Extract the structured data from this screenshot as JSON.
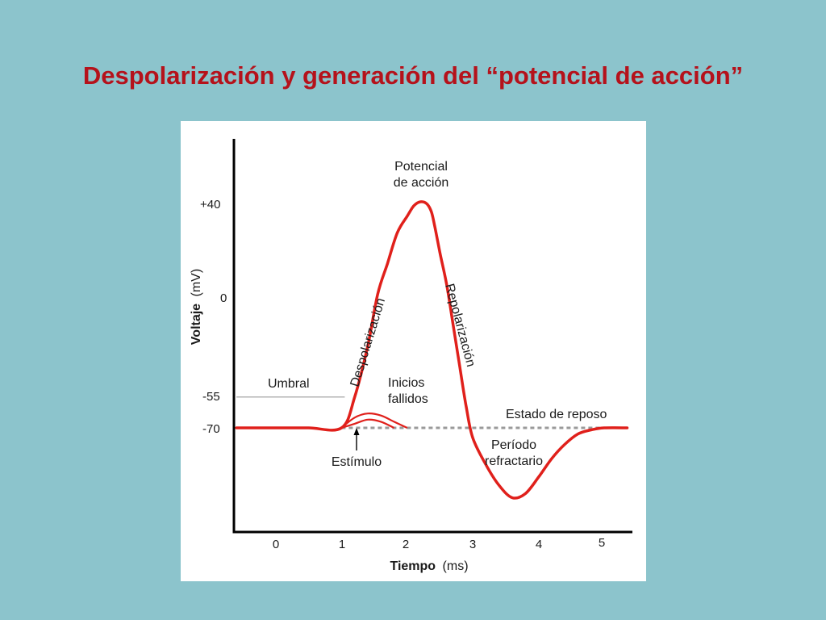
{
  "slide": {
    "title": "Despolarización y generación del “potencial de acción”"
  },
  "chart_data": {
    "type": "line",
    "title": "",
    "xlabel_bold": "Tiempo",
    "xlabel_unit": "(ms)",
    "ylabel_bold": "Voltaje",
    "ylabel_unit": "(mV)",
    "x_ticks": [
      "0",
      "1",
      "2",
      "3",
      "4",
      "5"
    ],
    "x_tick_values": [
      0,
      1,
      2,
      3,
      4,
      5
    ],
    "y_ticks": [
      "+40",
      "0",
      "-55",
      "-70"
    ],
    "y_tick_values": [
      40,
      0,
      -55,
      -70
    ],
    "xlim": [
      -0.6,
      5.35
    ],
    "ylim": [
      -115,
      65
    ],
    "grid": false,
    "colors": {
      "trace": "#e0201b",
      "threshold": "#9a9a9a",
      "resting_dash": "#9a9a9a",
      "axis": "#000000"
    },
    "series": [
      {
        "values_x": [
          -0.6,
          0.0,
          0.5,
          1.0,
          1.2,
          1.4,
          1.55,
          1.7,
          1.85,
          2.0,
          2.1,
          2.2,
          2.3,
          2.37,
          2.42,
          2.5,
          2.6,
          2.7,
          2.8,
          2.9,
          3.0,
          3.2,
          3.4,
          3.6,
          3.8,
          4.0,
          4.2,
          4.4,
          4.6,
          4.8,
          5.0,
          5.35
        ],
        "values_y": [
          -70,
          -70,
          -70,
          -70,
          -55,
          -30,
          -5,
          10,
          25,
          33,
          38,
          40,
          39,
          35,
          28,
          15,
          0,
          -20,
          -40,
          -60,
          -75,
          -88,
          -98,
          -104,
          -102,
          -94,
          -85,
          -78,
          -73,
          -71,
          -70,
          -70
        ]
      },
      {
        "values_x": [
          1.0,
          1.2,
          1.4,
          1.6,
          1.8,
          2.0
        ],
        "values_y": [
          -70,
          -65,
          -63,
          -64,
          -67,
          -70
        ]
      },
      {
        "values_x": [
          1.0,
          1.2,
          1.4,
          1.6,
          1.8
        ],
        "values_y": [
          -70,
          -68,
          -66,
          -67,
          -70
        ]
      }
    ],
    "threshold": {
      "label": "Umbral",
      "value": -55,
      "x_range": [
        -0.6,
        1.0
      ]
    },
    "resting_dash": {
      "value": -70,
      "x_range": [
        1.0,
        5.35
      ]
    },
    "annotations": {
      "peak": [
        "Potencial",
        "de acción"
      ],
      "depolarization": "Despolarización",
      "repolarization": "Repolarización",
      "failed": [
        "Inicios",
        "fallidos"
      ],
      "resting": "Estado de reposo",
      "refractory": [
        "Período",
        "refractario"
      ],
      "stimulus": "Estímulo"
    }
  }
}
